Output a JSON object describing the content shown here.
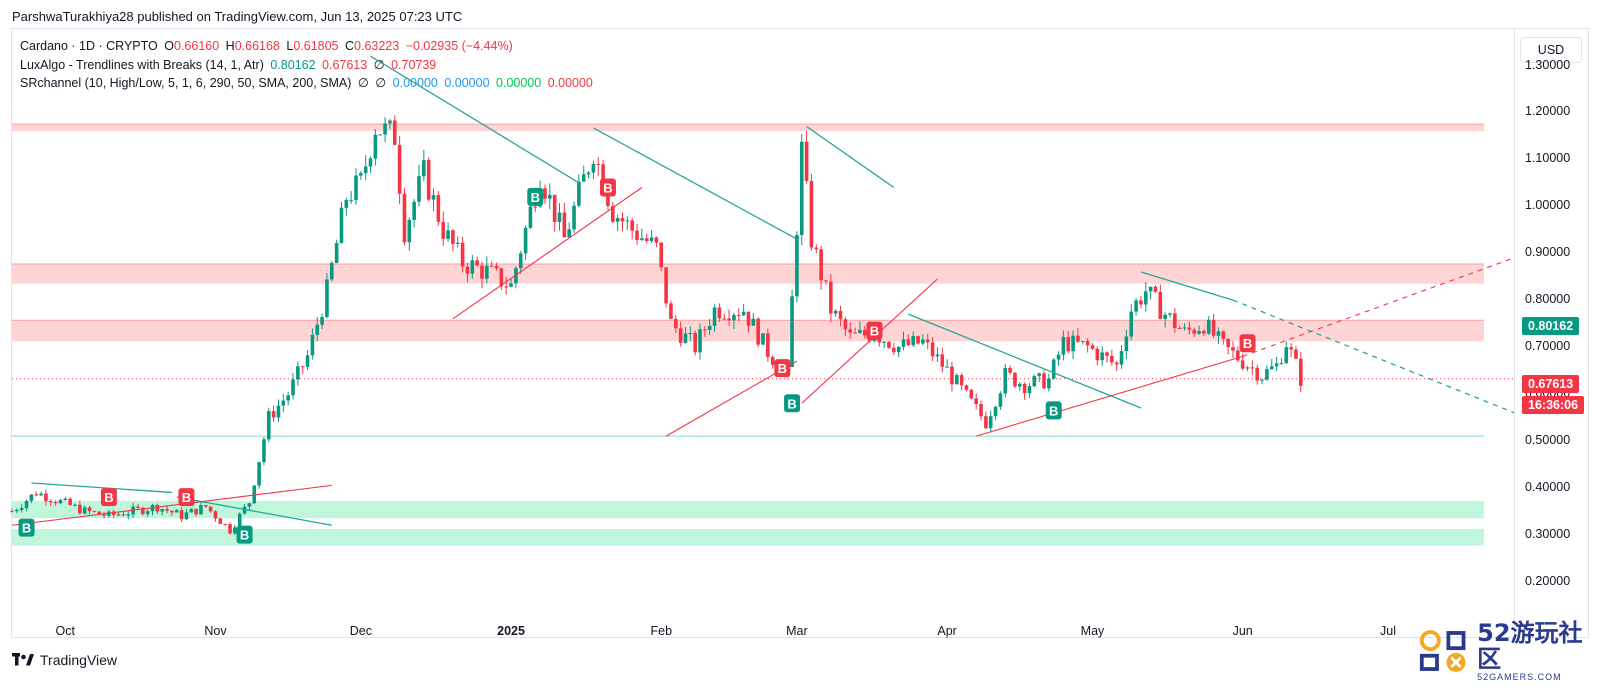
{
  "header": {
    "published_line": "ParshwaTurakhiya28 published on TradingView.com, Jun 13, 2025 07:23 UTC"
  },
  "legend": {
    "symbol_label": "Cardano · 1D · CRYPTO",
    "o_label": "O",
    "o_value": "0.66160",
    "h_label": "H",
    "h_value": "0.66168",
    "l_label": "L",
    "l_value": "0.61805",
    "c_label": "C",
    "c_value": "0.63223",
    "change_value": "−0.02935 (−4.44%)",
    "lux_label": "LuxAlgo - Trendlines with Breaks (14, 1, Atr)",
    "lux_v1": "0.80162",
    "lux_v2": "0.67613",
    "lux_empty": "∅",
    "lux_v3": "0.70739",
    "sr_label": "SRchannel (10, High/Low, 5, 1, 6, 290, 50, SMA, 200, SMA)",
    "sr_empty1": "∅",
    "sr_empty2": "∅",
    "sr_v1": "0.00000",
    "sr_v2": "0.00000",
    "sr_v3": "0.00000",
    "sr_v4": "0.00000"
  },
  "currency_button": "USD",
  "price_tags": {
    "trendline_value": "0.80162",
    "last_price": "0.67613",
    "countdown": "16:36:06"
  },
  "footer": {
    "brand": "TradingView"
  },
  "watermark": {
    "big": "52游玩社区",
    "small": "52GAMERS.COM"
  },
  "colors": {
    "up": "#089981",
    "down": "#f23645",
    "support_zone": "#b9f5d8",
    "resistance_zone": "#ffc9c9"
  },
  "chart_data": {
    "type": "candlestick",
    "symbol": "Cardano · 1D · CRYPTO",
    "currency": "USD",
    "ylim": [
      0.15,
      1.38
    ],
    "y_ticks": [
      "1.30000",
      "1.20000",
      "1.10000",
      "1.00000",
      "0.90000",
      "0.80000",
      "0.70000",
      "0.60000",
      "0.50000",
      "0.40000",
      "0.30000",
      "0.20000"
    ],
    "x_ticks": [
      "Oct",
      "Nov",
      "Dec",
      "2025",
      "Feb",
      "Mar",
      "Apr",
      "May",
      "Jun",
      "Jul"
    ],
    "x_tick_dates": [
      "2024-10-01",
      "2024-11-01",
      "2024-12-01",
      "2025-01-01",
      "2025-02-01",
      "2025-03-01",
      "2025-04-01",
      "2025-05-01",
      "2025-06-01",
      "2025-07-01"
    ],
    "x_range": [
      "2024-09-20",
      "2025-07-27"
    ],
    "close_points": [
      [
        "2024-09-20",
        0.35
      ],
      [
        "2024-09-25",
        0.39
      ],
      [
        "2024-09-30",
        0.37
      ],
      [
        "2024-10-05",
        0.35
      ],
      [
        "2024-10-10",
        0.34
      ],
      [
        "2024-10-15",
        0.35
      ],
      [
        "2024-10-20",
        0.36
      ],
      [
        "2024-10-25",
        0.34
      ],
      [
        "2024-10-30",
        0.36
      ],
      [
        "2024-11-04",
        0.31
      ],
      [
        "2024-11-08",
        0.37
      ],
      [
        "2024-11-12",
        0.55
      ],
      [
        "2024-11-16",
        0.6
      ],
      [
        "2024-11-20",
        0.68
      ],
      [
        "2024-11-24",
        0.82
      ],
      [
        "2024-11-28",
        1.02
      ],
      [
        "2024-12-01",
        1.05
      ],
      [
        "2024-12-04",
        1.17
      ],
      [
        "2024-12-08",
        1.15
      ],
      [
        "2024-12-10",
        0.95
      ],
      [
        "2024-12-14",
        1.07
      ],
      [
        "2024-12-18",
        0.95
      ],
      [
        "2024-12-22",
        0.88
      ],
      [
        "2024-12-27",
        0.86
      ],
      [
        "2025-01-01",
        0.83
      ],
      [
        "2025-01-04",
        0.95
      ],
      [
        "2025-01-07",
        1.07
      ],
      [
        "2025-01-12",
        0.93
      ],
      [
        "2025-01-18",
        1.12
      ],
      [
        "2025-01-22",
        0.99
      ],
      [
        "2025-01-26",
        0.95
      ],
      [
        "2025-01-31",
        0.91
      ],
      [
        "2025-02-03",
        0.75
      ],
      [
        "2025-02-08",
        0.7
      ],
      [
        "2025-02-12",
        0.78
      ],
      [
        "2025-02-18",
        0.78
      ],
      [
        "2025-02-23",
        0.69
      ],
      [
        "2025-02-27",
        0.64
      ],
      [
        "2025-03-02",
        1.12
      ],
      [
        "2025-03-04",
        0.93
      ],
      [
        "2025-03-08",
        0.78
      ],
      [
        "2025-03-12",
        0.72
      ],
      [
        "2025-03-17",
        0.73
      ],
      [
        "2025-03-22",
        0.7
      ],
      [
        "2025-03-27",
        0.71
      ],
      [
        "2025-04-01",
        0.65
      ],
      [
        "2025-04-06",
        0.58
      ],
      [
        "2025-04-09",
        0.54
      ],
      [
        "2025-04-13",
        0.64
      ],
      [
        "2025-04-17",
        0.62
      ],
      [
        "2025-04-22",
        0.63
      ],
      [
        "2025-04-25",
        0.71
      ],
      [
        "2025-04-30",
        0.7
      ],
      [
        "2025-05-06",
        0.66
      ],
      [
        "2025-05-09",
        0.78
      ],
      [
        "2025-05-12",
        0.82
      ],
      [
        "2025-05-16",
        0.77
      ],
      [
        "2025-05-20",
        0.73
      ],
      [
        "2025-05-24",
        0.75
      ],
      [
        "2025-05-28",
        0.7
      ],
      [
        "2025-06-01",
        0.67
      ],
      [
        "2025-06-05",
        0.64
      ],
      [
        "2025-06-08",
        0.66
      ],
      [
        "2025-06-10",
        0.71
      ],
      [
        "2025-06-12",
        0.66
      ],
      [
        "2025-06-13",
        0.63223
      ]
    ],
    "resistance_zones": [
      [
        1.16,
        1.175
      ],
      [
        0.835,
        0.877
      ],
      [
        0.712,
        0.757
      ]
    ],
    "support_zones": [
      [
        0.335,
        0.372
      ],
      [
        0.277,
        0.312
      ]
    ],
    "support_line": 0.51,
    "trendlines_resistance": [
      {
        "from": [
          "2024-12-03",
          1.32
        ],
        "to": [
          "2025-01-15",
          1.05
        ]
      },
      {
        "from": [
          "2025-01-18",
          1.167
        ],
        "to": [
          "2025-03-01",
          0.93
        ]
      },
      {
        "from": [
          "2025-03-03",
          1.17
        ],
        "to": [
          "2025-03-21",
          1.04
        ]
      },
      {
        "from": [
          "2025-03-24",
          0.77
        ],
        "to": [
          "2025-05-11",
          0.57
        ]
      },
      {
        "from": [
          "2025-05-11",
          0.86
        ],
        "to": [
          "2025-05-30",
          0.8
        ]
      },
      {
        "from": [
          "2024-09-24",
          0.41
        ],
        "to": [
          "2024-10-23",
          0.39
        ]
      },
      {
        "from": [
          "2024-10-24",
          0.38
        ],
        "to": [
          "2024-11-25",
          0.32
        ]
      }
    ],
    "trendlines_resistance_projected": [
      {
        "from": [
          "2025-05-30",
          0.8
        ],
        "to": [
          "2025-07-27",
          0.56
        ]
      }
    ],
    "trendlines_support": [
      {
        "from": [
          "2024-12-20",
          0.76
        ],
        "to": [
          "2025-01-28",
          1.04
        ]
      },
      {
        "from": [
          "2025-02-02",
          0.51
        ],
        "to": [
          "2025-03-01",
          0.67
        ]
      },
      {
        "from": [
          "2025-03-02",
          0.58
        ],
        "to": [
          "2025-03-30",
          0.845
        ]
      },
      {
        "from": [
          "2025-04-07",
          0.51
        ],
        "to": [
          "2025-06-01",
          0.68
        ]
      },
      {
        "from": [
          "2024-09-20",
          0.32
        ],
        "to": [
          "2024-11-25",
          0.405
        ]
      }
    ],
    "trendlines_support_projected": [
      {
        "from": [
          "2025-06-01",
          0.68
        ],
        "to": [
          "2025-07-27",
          0.89
        ]
      }
    ],
    "buy_markers": [
      [
        "2024-09-23",
        0.315
      ],
      [
        "2024-11-07",
        0.3
      ],
      [
        "2025-01-06",
        1.02
      ],
      [
        "2025-02-28",
        0.58
      ],
      [
        "2025-04-23",
        0.565
      ]
    ],
    "break_markers": [
      [
        "2024-10-10",
        0.38
      ],
      [
        "2024-10-26",
        0.38
      ],
      [
        "2025-01-21",
        1.04
      ],
      [
        "2025-02-26",
        0.655
      ],
      [
        "2025-03-17",
        0.735
      ],
      [
        "2025-06-02",
        0.708
      ]
    ],
    "marker_label": "B"
  }
}
